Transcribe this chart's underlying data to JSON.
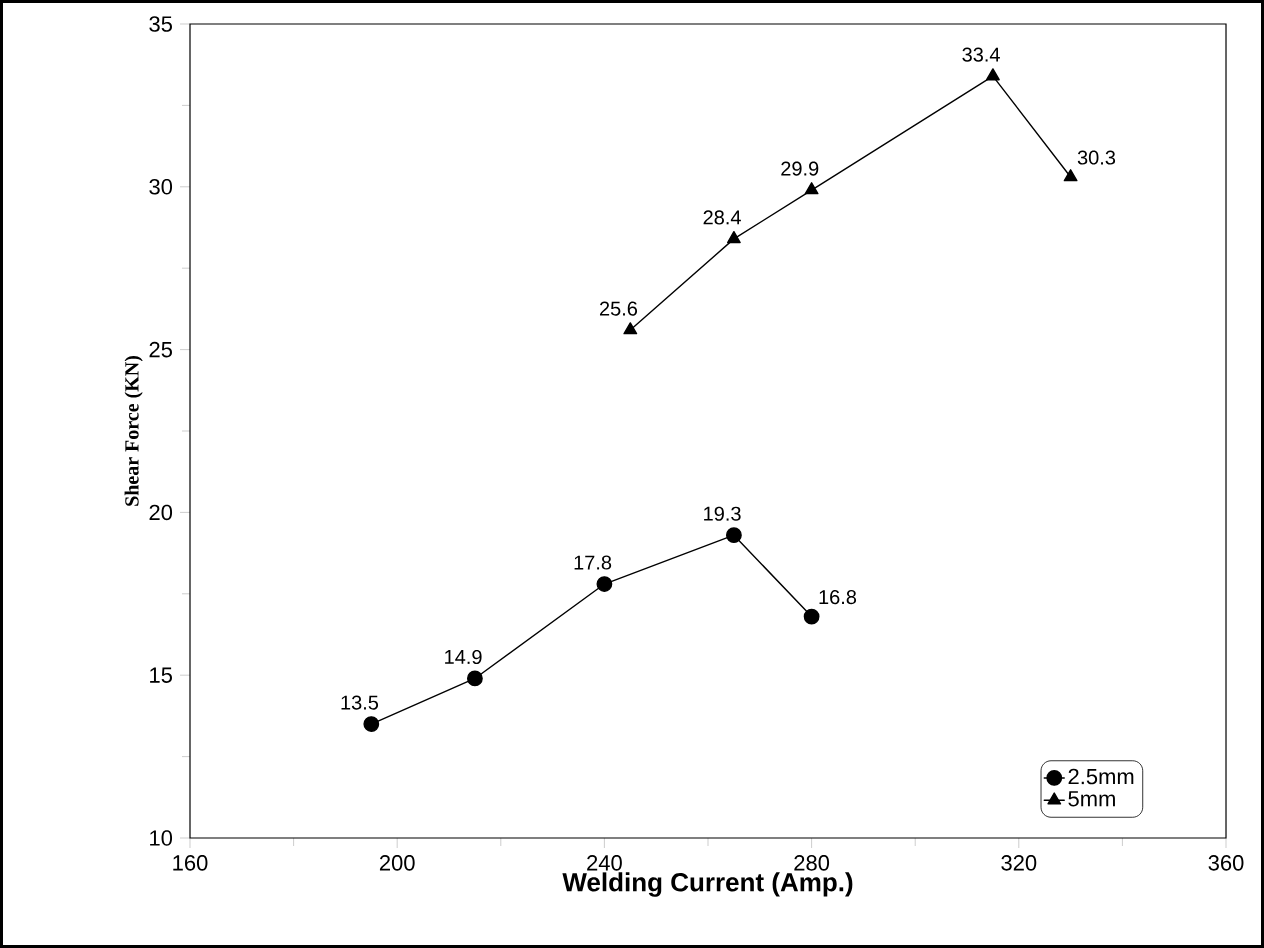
{
  "chart_data": {
    "type": "line",
    "xlabel": "Welding Current (Amp.)",
    "ylabel": "Shear Force (KN)",
    "x": [
      195,
      215,
      240,
      265,
      280
    ],
    "series": [
      {
        "name": "2.5mm",
        "color": "#000000",
        "marker": "circle",
        "values": [
          13.5,
          14.9,
          17.8,
          19.3,
          16.8
        ]
      },
      {
        "name": "5mm",
        "color": "#000000",
        "marker": "triangle",
        "x": [
          245,
          265,
          280,
          315,
          330
        ],
        "values": [
          25.6,
          28.4,
          29.9,
          33.4,
          30.3
        ]
      }
    ],
    "xlim": [
      160,
      360
    ],
    "xticks": [
      160,
      200,
      240,
      280,
      320,
      360
    ],
    "ylim": [
      10,
      35
    ],
    "yticks": [
      10,
      15,
      20,
      25,
      30,
      35
    ],
    "data_labels": true,
    "legend": "bottom right",
    "grid": false,
    "line_style": "solid"
  }
}
